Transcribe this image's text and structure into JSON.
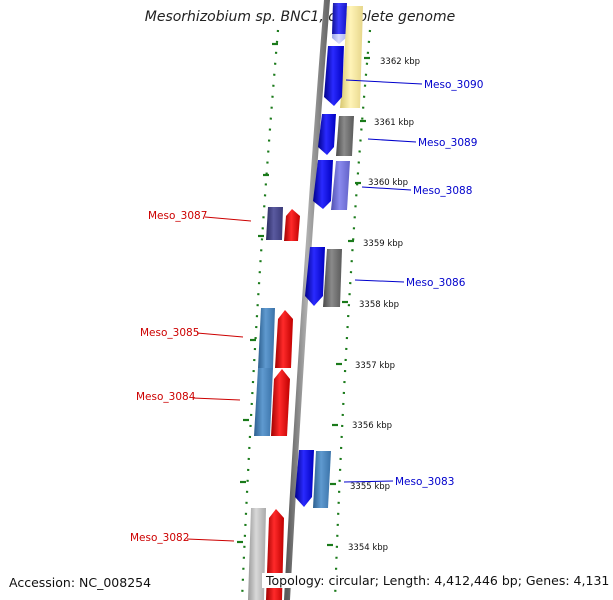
{
  "title": "Mesorhizobium sp. BNC1, complete genome",
  "footer": {
    "accession": "Accession: NC_008254",
    "summary": "Topology: circular; Length: 4,412,446 bp; Genes: 4,131"
  },
  "colors": {
    "forward_label": "#0000cc",
    "reverse_label": "#cc0000",
    "backbone": "#808080",
    "ticks": "#1a7a1a"
  },
  "scale": {
    "ticks": [
      {
        "label": "3362 kbp"
      },
      {
        "label": "3361 kbp"
      },
      {
        "label": "3360 kbp"
      },
      {
        "label": "3359 kbp"
      },
      {
        "label": "3358 kbp"
      },
      {
        "label": "3357 kbp"
      },
      {
        "label": "3356 kbp"
      },
      {
        "label": "3355 kbp"
      },
      {
        "label": "3354 kbp"
      }
    ]
  },
  "gene_labels": [
    {
      "name": "Meso_3090",
      "strand": "forward"
    },
    {
      "name": "Meso_3089",
      "strand": "forward"
    },
    {
      "name": "Meso_3088",
      "strand": "forward"
    },
    {
      "name": "Meso_3087",
      "strand": "reverse"
    },
    {
      "name": "Meso_3086",
      "strand": "forward"
    },
    {
      "name": "Meso_3085",
      "strand": "reverse"
    },
    {
      "name": "Meso_3084",
      "strand": "reverse"
    },
    {
      "name": "Meso_3083",
      "strand": "forward"
    },
    {
      "name": "Meso_3082",
      "strand": "reverse"
    }
  ]
}
